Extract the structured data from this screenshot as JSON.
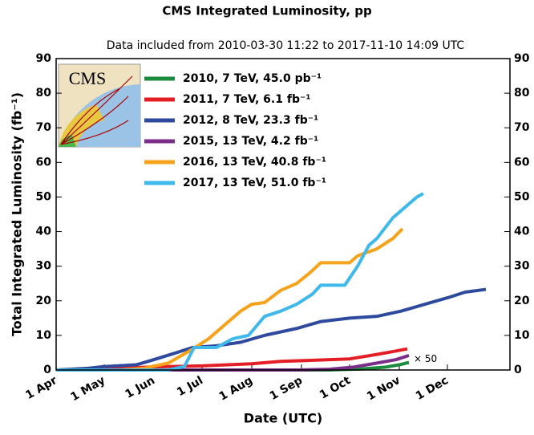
{
  "chart_data": {
    "type": "line",
    "title": "CMS Integrated Luminosity, pp",
    "subtitle": "Data included from 2010-03-30 11:22 to 2017-11-10 14:09 UTC",
    "x_label": "Date (UTC)",
    "y_label": "Total Integrated Luminosity (fb⁻¹)",
    "logo": "CMS",
    "annotation": "× 50",
    "xlim": [
      0,
      283
    ],
    "xticks": [
      {
        "value": 0,
        "label": "1 Apr"
      },
      {
        "value": 30,
        "label": "1 May"
      },
      {
        "value": 61,
        "label": "1 Jun"
      },
      {
        "value": 91,
        "label": "1 Jul"
      },
      {
        "value": 122,
        "label": "1 Aug"
      },
      {
        "value": 153,
        "label": "1 Sep"
      },
      {
        "value": 183,
        "label": "1 Oct"
      },
      {
        "value": 214,
        "label": "1 Nov"
      },
      {
        "value": 244,
        "label": "1 Dec"
      }
    ],
    "ylim": [
      0,
      90
    ],
    "yticks": [
      0,
      10,
      20,
      30,
      40,
      50,
      60,
      70,
      80,
      90
    ],
    "y2lim": [
      0,
      90
    ],
    "y2ticks": [
      0,
      10,
      20,
      30,
      40,
      50,
      60,
      70,
      80,
      90
    ],
    "series": [
      {
        "name": "2010, 7 TeV, 45.0 pb⁻¹",
        "color": "#1a8a3c",
        "x": [
          0,
          170,
          190,
          205,
          214,
          220
        ],
        "values": [
          0,
          0,
          0.3,
          0.8,
          1.5,
          2.2
        ]
      },
      {
        "name": "2011, 7 TeV, 6.1 fb⁻¹",
        "color": "#e41e26",
        "x": [
          0,
          30,
          61,
          91,
          122,
          140,
          160,
          183,
          200,
          212,
          219
        ],
        "values": [
          0,
          0.3,
          0.9,
          1.2,
          1.8,
          2.5,
          2.8,
          3.2,
          4.5,
          5.5,
          6.1
        ]
      },
      {
        "name": "2012, 8 TeV, 23.3 fb⁻¹",
        "color": "#2e4a9e",
        "x": [
          0,
          20,
          30,
          50,
          61,
          75,
          85,
          100,
          115,
          130,
          150,
          165,
          183,
          200,
          215,
          230,
          245,
          255,
          268
        ],
        "values": [
          0,
          0.5,
          1,
          1.5,
          3,
          5,
          6.5,
          7,
          8,
          10,
          12,
          14,
          15,
          15.5,
          17,
          19,
          21,
          22.5,
          23.3
        ]
      },
      {
        "name": "2015, 13 TeV, 4.2 fb⁻¹",
        "color": "#7b2d8a",
        "x": [
          0,
          150,
          170,
          185,
          200,
          212,
          220
        ],
        "values": [
          0,
          0,
          0.2,
          0.8,
          2,
          3,
          4.2
        ]
      },
      {
        "name": "2016, 13 TeV, 40.8 fb⁻¹",
        "color": "#f7a21b",
        "x": [
          0,
          40,
          55,
          70,
          85,
          95,
          105,
          115,
          122,
          130,
          140,
          150,
          158,
          165,
          183,
          188,
          200,
          210,
          216
        ],
        "values": [
          0,
          0,
          0.5,
          2,
          6,
          9,
          13,
          17,
          19,
          19.5,
          23,
          25,
          28,
          31,
          31,
          33,
          35,
          38,
          40.8
        ]
      },
      {
        "name": "2017, 13 TeV, 51.0 fb⁻¹",
        "color": "#3fb8ea",
        "x": [
          0,
          70,
          80,
          86,
          100,
          110,
          120,
          130,
          140,
          150,
          160,
          165,
          180,
          188,
          195,
          200,
          210,
          215,
          225,
          229
        ],
        "values": [
          0,
          0,
          1,
          6.5,
          6.5,
          9,
          10,
          15.5,
          17,
          19,
          22,
          24.5,
          24.5,
          30,
          36,
          38,
          44,
          46,
          50,
          51
        ]
      }
    ]
  }
}
